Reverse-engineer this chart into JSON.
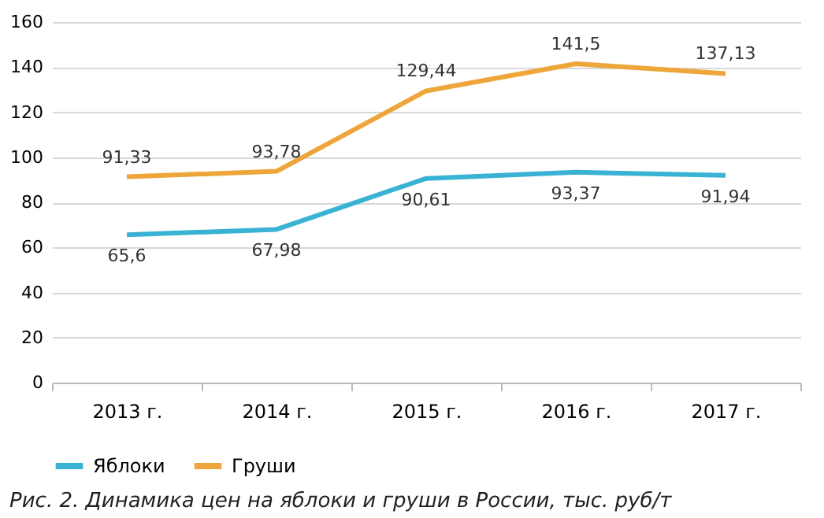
{
  "chart_data": {
    "type": "line",
    "title": "Рис. 2. Динамика цен на яблоки и груши в России, тыс. руб/т",
    "categories": [
      "2013 г.",
      "2014 г.",
      "2015 г.",
      "2016 г.",
      "2017 г."
    ],
    "series": [
      {
        "name": "Яблоки",
        "color": "#3ab2d3",
        "values": [
          65.6,
          67.98,
          90.61,
          93.37,
          91.94
        ],
        "value_labels": [
          "65,6",
          "67,98",
          "90,61",
          "93,37",
          "91,94"
        ]
      },
      {
        "name": "Груши",
        "color": "#eea53a",
        "values": [
          91.33,
          93.78,
          129.44,
          141.5,
          137.13
        ],
        "value_labels": [
          "91,33",
          "93,78",
          "129,44",
          "141,5",
          "137,13"
        ]
      }
    ],
    "ylim": [
      0,
      160
    ],
    "yticks": [
      0,
      20,
      40,
      60,
      80,
      100,
      120,
      140,
      160
    ],
    "grid": "y",
    "legend": "bottom",
    "marker": "none",
    "line_style": "solid"
  }
}
